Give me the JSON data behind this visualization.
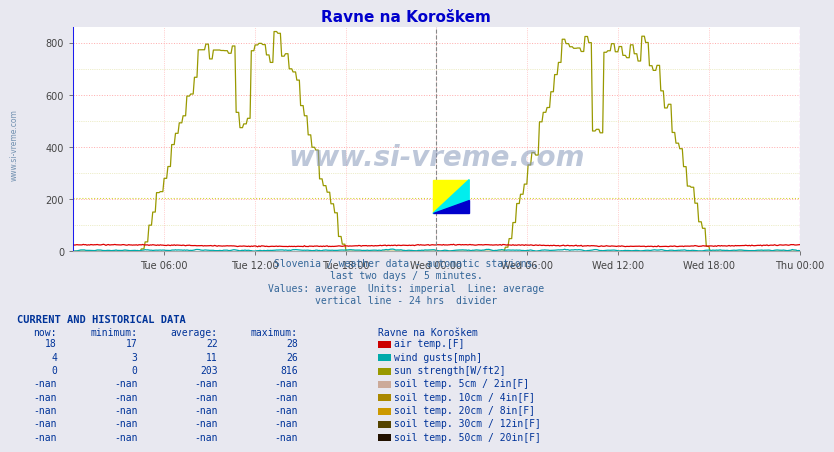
{
  "title": "Ravne na Koroškem",
  "title_color": "#0000cc",
  "bg_color": "#e8e8f0",
  "plot_bg_color": "#ffffff",
  "grid_color_major": "#ffaaaa",
  "grid_color_minor": "#ffdddd",
  "grid_dotted_color": "#dddd99",
  "ylim": [
    0,
    860
  ],
  "yticks": [
    0,
    200,
    400,
    600,
    800
  ],
  "xlabel_ticks": [
    "Tue 06:00",
    "Tue 12:00",
    "Tue 18:00",
    "Wed 00:00",
    "Wed 06:00",
    "Wed 12:00",
    "Wed 18:00",
    "Thu 00:00"
  ],
  "watermark": "www.si-vreme.com",
  "subtitle_lines": [
    "Slovenia / weather data - automatic stations.",
    "last two days / 5 minutes.",
    "Values: average  Units: imperial  Line: average",
    "vertical line - 24 hrs  divider"
  ],
  "subtitle_color": "#336699",
  "vline_color": "#888888",
  "left_vline_color": "#0000ff",
  "right_vline_color": "#cc00cc",
  "air_temp_color": "#dd0000",
  "wind_gusts_color": "#00aaaa",
  "sun_color": "#999900",
  "avg_line_color": "#dddd00",
  "table_rows": [
    [
      "18",
      "17",
      "22",
      "28",
      "air temp.[F]",
      "#cc0000"
    ],
    [
      "4",
      "3",
      "11",
      "26",
      "wind gusts[mph]",
      "#00aaaa"
    ],
    [
      "0",
      "0",
      "203",
      "816",
      "sun strength[W/ft2]",
      "#999900"
    ],
    [
      "-nan",
      "-nan",
      "-nan",
      "-nan",
      "soil temp. 5cm / 2in[F]",
      "#ccaa99"
    ],
    [
      "-nan",
      "-nan",
      "-nan",
      "-nan",
      "soil temp. 10cm / 4in[F]",
      "#aa8800"
    ],
    [
      "-nan",
      "-nan",
      "-nan",
      "-nan",
      "soil temp. 20cm / 8in[F]",
      "#cc9900"
    ],
    [
      "-nan",
      "-nan",
      "-nan",
      "-nan",
      "soil temp. 30cm / 12in[F]",
      "#554400"
    ],
    [
      "-nan",
      "-nan",
      "-nan",
      "-nan",
      "soil temp. 50cm / 20in[F]",
      "#221100"
    ]
  ],
  "total_points": 576
}
